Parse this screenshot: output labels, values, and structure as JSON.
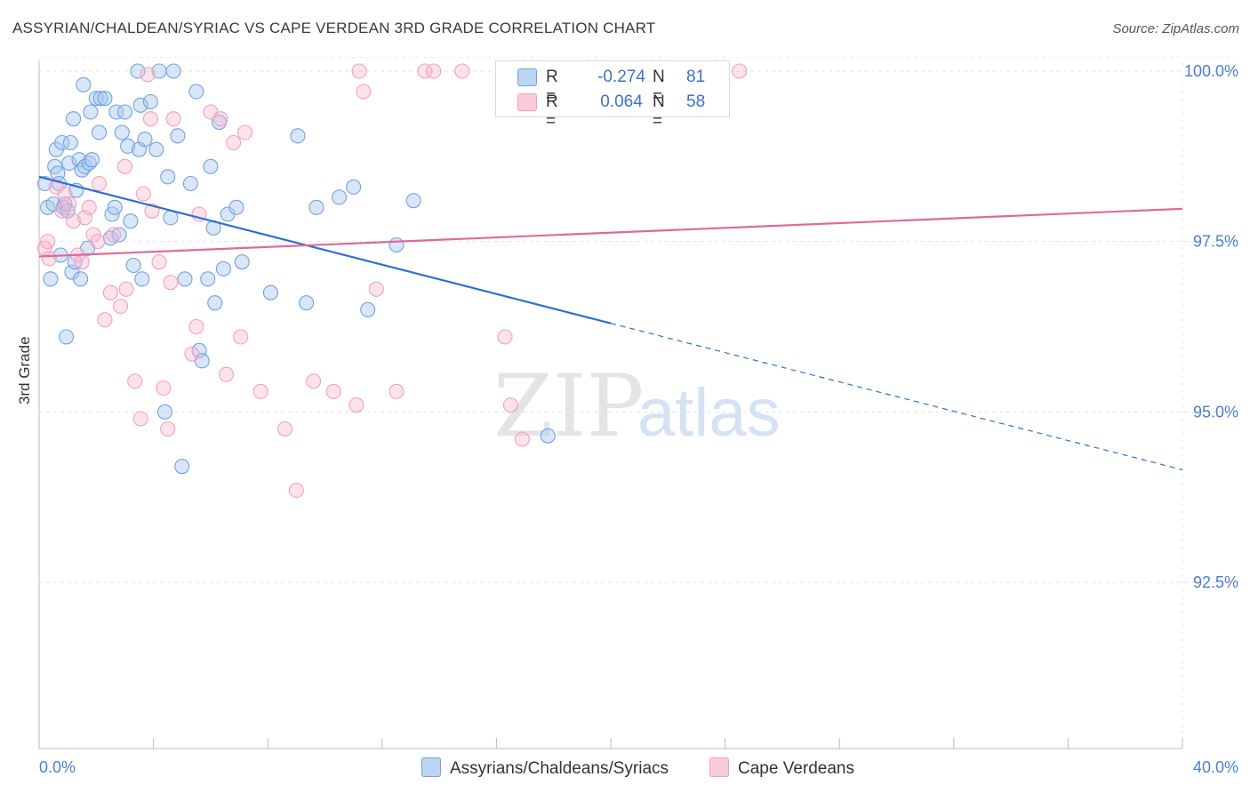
{
  "title": "ASSYRIAN/CHALDEAN/SYRIAC VS CAPE VERDEAN 3RD GRADE CORRELATION CHART",
  "source": "Source: ZipAtlas.com",
  "watermark": {
    "zip": "ZIP",
    "atlas": "atlas"
  },
  "legend": {
    "rows": [
      {
        "r_label": "R =",
        "r_value": "-0.274",
        "n_label": "N =",
        "n_value": "81",
        "color": "#a8c8f0"
      },
      {
        "r_label": "R =",
        "r_value": "0.064",
        "n_label": "N =",
        "n_value": "58",
        "color": "#f8b8cc"
      }
    ]
  },
  "bottom_legend": [
    "Assyrians/Chaldeans/Syriacs",
    "Cape Verdeans"
  ],
  "chart_data": {
    "type": "scatter",
    "title": "ASSYRIAN/CHALDEAN/SYRIAC VS CAPE VERDEAN 3RD GRADE CORRELATION CHART",
    "xlabel": "",
    "ylabel": "3rd Grade",
    "xlim": [
      0,
      40
    ],
    "ylim": [
      90.0,
      100.2
    ],
    "x_tick_labels": [
      "0.0%",
      "40.0%"
    ],
    "y_ticks": [
      92.5,
      95.0,
      97.5,
      100.0
    ],
    "y_tick_labels": [
      "92.5%",
      "95.0%",
      "97.5%",
      "100.0%"
    ],
    "grid": true,
    "series": [
      {
        "name": "Assyrians/Chaldeans/Syriacs",
        "color": "#6fa3e0",
        "line_color": "#2f6fcf",
        "trend": {
          "x0": 0.0,
          "y0": 98.45,
          "x1": 20.0,
          "y1": 96.3,
          "dash_to_x": 40.0,
          "dash_to_y": 94.15
        },
        "points": [
          [
            0.2,
            98.35
          ],
          [
            0.3,
            98.0
          ],
          [
            0.4,
            96.95
          ],
          [
            0.5,
            98.05
          ],
          [
            0.55,
            98.6
          ],
          [
            0.6,
            98.85
          ],
          [
            0.65,
            98.5
          ],
          [
            0.7,
            98.35
          ],
          [
            0.75,
            97.3
          ],
          [
            0.8,
            98.95
          ],
          [
            0.85,
            98.0
          ],
          [
            0.9,
            98.05
          ],
          [
            0.95,
            96.1
          ],
          [
            1.0,
            97.95
          ],
          [
            1.05,
            98.65
          ],
          [
            1.1,
            98.95
          ],
          [
            1.15,
            97.05
          ],
          [
            1.2,
            99.3
          ],
          [
            1.25,
            97.2
          ],
          [
            1.3,
            98.25
          ],
          [
            1.4,
            98.7
          ],
          [
            1.45,
            96.95
          ],
          [
            1.5,
            98.55
          ],
          [
            1.55,
            99.8
          ],
          [
            1.6,
            98.6
          ],
          [
            1.7,
            97.4
          ],
          [
            1.75,
            98.65
          ],
          [
            1.8,
            99.4
          ],
          [
            1.85,
            98.7
          ],
          [
            2.0,
            99.6
          ],
          [
            2.1,
            99.1
          ],
          [
            2.15,
            99.6
          ],
          [
            2.3,
            99.6
          ],
          [
            2.5,
            97.55
          ],
          [
            2.55,
            97.9
          ],
          [
            2.65,
            98.0
          ],
          [
            2.7,
            99.4
          ],
          [
            2.8,
            97.6
          ],
          [
            2.9,
            99.1
          ],
          [
            3.0,
            99.4
          ],
          [
            3.1,
            98.9
          ],
          [
            3.2,
            97.8
          ],
          [
            3.3,
            97.15
          ],
          [
            3.45,
            100.0
          ],
          [
            3.5,
            98.85
          ],
          [
            3.55,
            99.5
          ],
          [
            3.6,
            96.95
          ],
          [
            3.7,
            99.0
          ],
          [
            3.9,
            99.55
          ],
          [
            4.1,
            98.85
          ],
          [
            4.2,
            100.0
          ],
          [
            4.4,
            95.0
          ],
          [
            4.5,
            98.45
          ],
          [
            4.6,
            97.85
          ],
          [
            4.7,
            100.0
          ],
          [
            4.85,
            99.05
          ],
          [
            5.0,
            94.2
          ],
          [
            5.1,
            96.95
          ],
          [
            5.3,
            98.35
          ],
          [
            5.5,
            99.7
          ],
          [
            5.6,
            95.9
          ],
          [
            5.7,
            95.75
          ],
          [
            5.9,
            96.95
          ],
          [
            6.0,
            98.6
          ],
          [
            6.1,
            97.7
          ],
          [
            6.15,
            96.6
          ],
          [
            6.3,
            99.25
          ],
          [
            6.45,
            97.1
          ],
          [
            6.6,
            97.9
          ],
          [
            6.9,
            98.0
          ],
          [
            7.1,
            97.2
          ],
          [
            8.1,
            96.75
          ],
          [
            9.05,
            99.05
          ],
          [
            9.35,
            96.6
          ],
          [
            9.7,
            98.0
          ],
          [
            10.5,
            98.15
          ],
          [
            11.0,
            98.3
          ],
          [
            11.5,
            96.5
          ],
          [
            12.5,
            97.45
          ],
          [
            13.1,
            98.1
          ],
          [
            17.8,
            94.65
          ]
        ]
      },
      {
        "name": "Cape Verdeans",
        "color": "#f4a0bc",
        "line_color": "#e0699a",
        "trend": {
          "x0": 0.0,
          "y0": 97.28,
          "x1": 40.0,
          "y1": 97.98
        },
        "points": [
          [
            0.2,
            97.4
          ],
          [
            0.3,
            97.5
          ],
          [
            0.35,
            97.25
          ],
          [
            0.6,
            98.3
          ],
          [
            0.8,
            97.95
          ],
          [
            0.9,
            98.2
          ],
          [
            1.05,
            98.05
          ],
          [
            1.2,
            97.8
          ],
          [
            1.35,
            97.3
          ],
          [
            1.5,
            97.2
          ],
          [
            1.6,
            97.85
          ],
          [
            1.75,
            98.0
          ],
          [
            1.9,
            97.6
          ],
          [
            2.05,
            97.5
          ],
          [
            2.1,
            98.35
          ],
          [
            2.3,
            96.35
          ],
          [
            2.5,
            96.75
          ],
          [
            2.6,
            97.6
          ],
          [
            2.85,
            96.55
          ],
          [
            3.0,
            98.6
          ],
          [
            3.05,
            96.8
          ],
          [
            3.35,
            95.45
          ],
          [
            3.55,
            94.9
          ],
          [
            3.65,
            98.2
          ],
          [
            3.8,
            99.95
          ],
          [
            3.9,
            99.3
          ],
          [
            3.95,
            97.95
          ],
          [
            4.2,
            97.2
          ],
          [
            4.35,
            95.35
          ],
          [
            4.5,
            94.75
          ],
          [
            4.6,
            96.9
          ],
          [
            4.7,
            99.3
          ],
          [
            5.35,
            95.85
          ],
          [
            5.5,
            96.25
          ],
          [
            5.6,
            97.9
          ],
          [
            6.0,
            99.4
          ],
          [
            6.35,
            99.3
          ],
          [
            6.55,
            95.55
          ],
          [
            6.8,
            98.95
          ],
          [
            7.05,
            96.1
          ],
          [
            7.2,
            99.1
          ],
          [
            7.75,
            95.3
          ],
          [
            8.6,
            94.75
          ],
          [
            9.0,
            93.85
          ],
          [
            9.6,
            95.45
          ],
          [
            10.3,
            95.3
          ],
          [
            11.1,
            95.1
          ],
          [
            11.2,
            100.0
          ],
          [
            11.35,
            99.7
          ],
          [
            11.8,
            96.8
          ],
          [
            13.5,
            100.0
          ],
          [
            13.8,
            100.0
          ],
          [
            16.3,
            96.1
          ],
          [
            16.5,
            95.1
          ],
          [
            16.9,
            94.6
          ],
          [
            24.5,
            100.0
          ],
          [
            12.5,
            95.3
          ],
          [
            14.8,
            100.0
          ]
        ]
      }
    ]
  }
}
